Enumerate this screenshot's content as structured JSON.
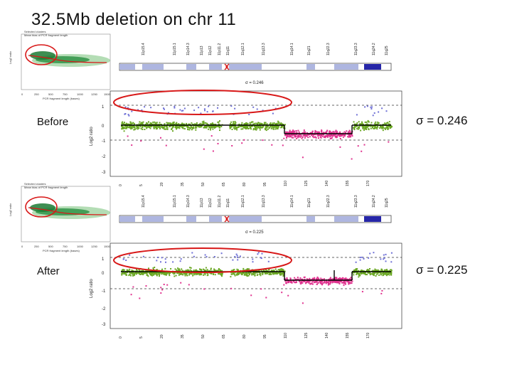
{
  "title": "32.5Mb deletion on chr 11",
  "before": {
    "label": "Before",
    "sigma": "σ = 0.246",
    "inset_sigma": "σ = 0.246",
    "inset_title_1": "Selected clusters",
    "inset_title_2": "Mean bias of PCR fragment length",
    "inset_xlabel": "PCR fragment length (bases)"
  },
  "after": {
    "label": "After",
    "sigma": "σ = 0.225",
    "inset_sigma": "σ = 0.225",
    "inset_title_1": "Selected clusters",
    "inset_title_2": "Mean bias of PCR fragment length",
    "inset_xlabel": "PCR fragment length (bases)"
  },
  "ylabel": "Log2 ratio",
  "yticks": [
    "1",
    "0",
    "-1",
    "-2",
    "-3"
  ],
  "inset_xticks": [
    "0",
    "250",
    "500",
    "750",
    "1000",
    "1250",
    "1500"
  ],
  "bands": [
    "11p15.4",
    "11p15.1",
    "11p14.3",
    "11p13",
    "11p12",
    "11p11.2",
    "11q11",
    "11q12.1",
    "11q12.3",
    "11q13.3",
    "11q14.1",
    "11q21",
    "11q22.3",
    "11q23.3",
    "11q24.2",
    "11q25"
  ],
  "xticks": [
    "0",
    "5",
    "20",
    "35",
    "50",
    "65",
    "80",
    "95",
    "110",
    "125",
    "140",
    "155",
    "170"
  ],
  "colors": {
    "green": "#6aa723",
    "magenta": "#e0338f",
    "blue": "#6f70d6",
    "oval": "#d81818",
    "seg": "#000000"
  }
}
